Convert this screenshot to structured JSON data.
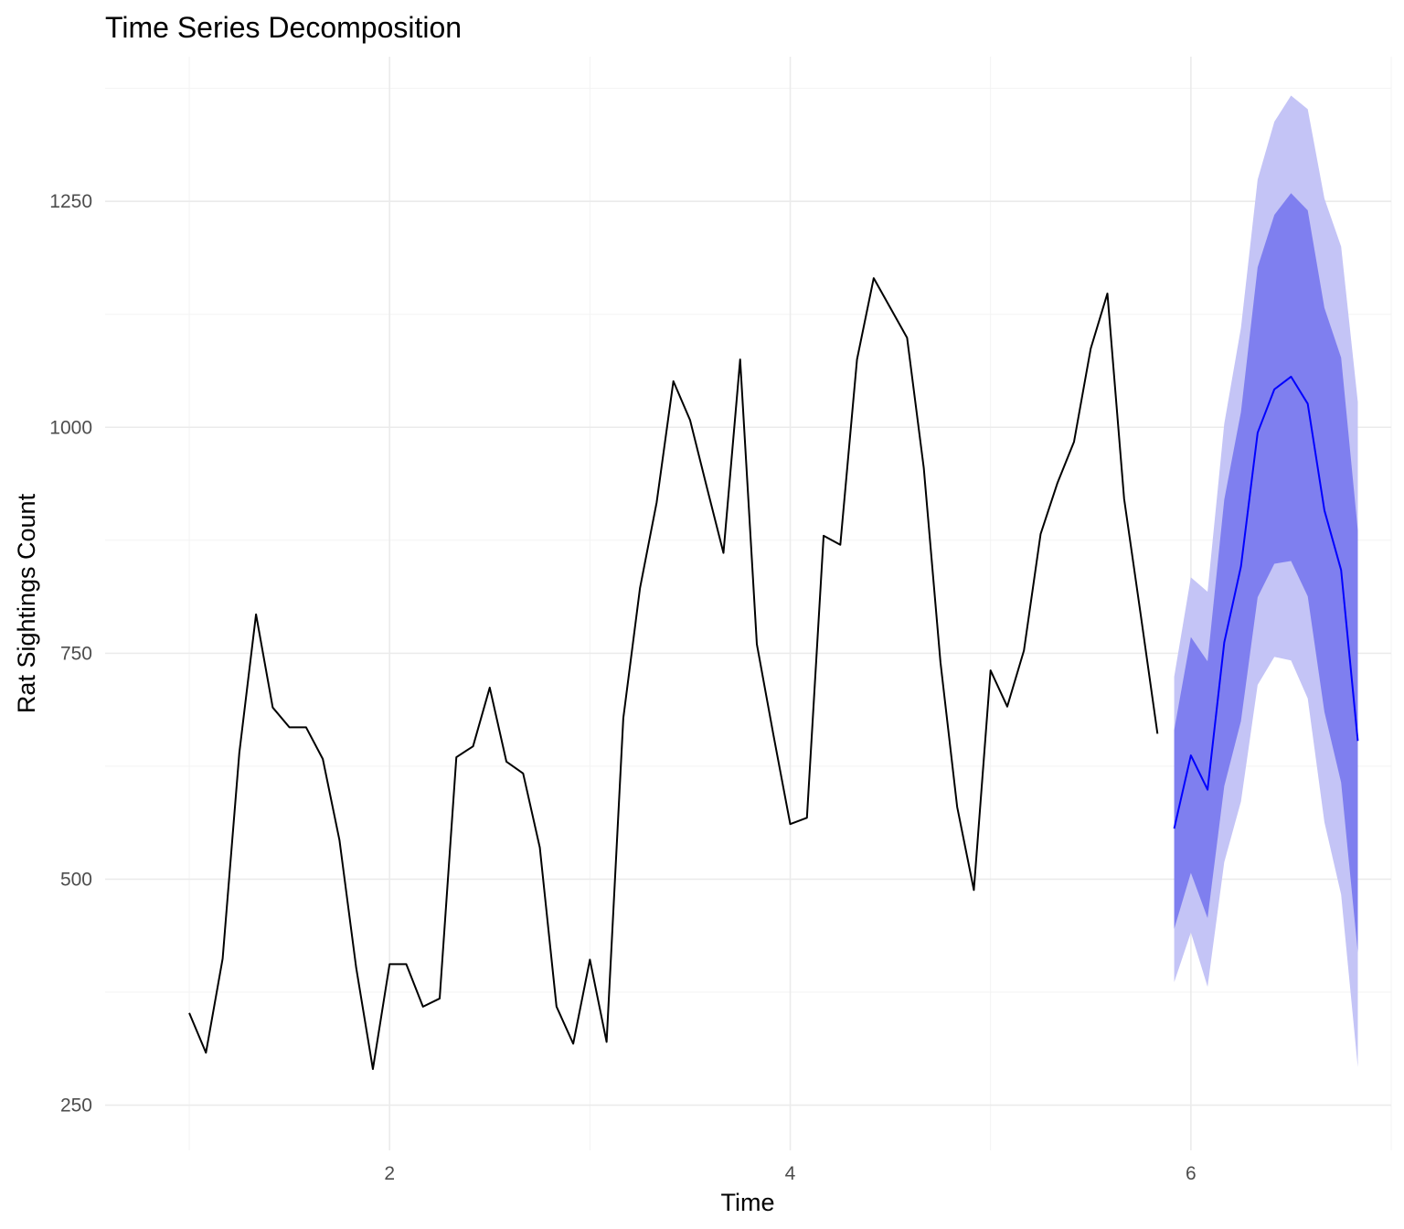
{
  "chart_data": {
    "type": "line",
    "title": "Time Series Decomposition",
    "xlabel": "Time",
    "ylabel": "Rat Sightings Count",
    "xlim": [
      0.58,
      7.0
    ],
    "ylim": [
      200,
      1410
    ],
    "x_ticks": [
      2,
      4,
      6
    ],
    "x_minor_ticks": [
      1,
      3,
      5,
      7
    ],
    "y_ticks": [
      250,
      500,
      750,
      1000,
      1250
    ],
    "y_minor_ticks": [
      375,
      625,
      875,
      1125,
      1375
    ],
    "grid": true,
    "legend": "none",
    "colors": {
      "observed": "#000000",
      "forecast_mean": "#0000ff",
      "band_80": "#7f7fef",
      "band_95": "#c4c4f6"
    },
    "series": [
      {
        "role": "observed",
        "x_start": 1.0,
        "x_step": 0.08333333,
        "values": [
          352,
          308,
          412,
          640,
          793,
          690,
          668,
          668,
          633,
          543,
          402,
          290,
          406,
          406,
          359,
          368,
          635,
          647,
          712,
          630,
          617,
          535,
          359,
          318,
          411,
          320,
          678,
          822,
          917,
          1051,
          1008,
          934,
          861,
          1075,
          760,
          659,
          561,
          568,
          880,
          870,
          1075,
          1165,
          1132,
          1099,
          955,
          740,
          580,
          488,
          731,
          691,
          753,
          882,
          938,
          984,
          1087,
          1148,
          921,
          792,
          661
        ]
      },
      {
        "role": "forecast_mean",
        "x_start": 5.91666667,
        "x_step": 0.08333333,
        "values": [
          556,
          637,
          599,
          762,
          846,
          994,
          1042,
          1056,
          1026,
          908,
          842,
          653
        ]
      },
      {
        "role": "band_80",
        "x_start": 5.91666667,
        "x_step": 0.08333333,
        "lower": [
          445,
          507,
          457,
          603,
          675,
          812,
          849,
          852,
          813,
          685,
          607,
          419
        ],
        "upper": [
          665,
          768,
          741,
          920,
          1017,
          1177,
          1235,
          1259,
          1240,
          1132,
          1077,
          886
        ]
      },
      {
        "role": "band_95",
        "x_start": 5.91666667,
        "x_step": 0.08333333,
        "lower": [
          386,
          441,
          381,
          519,
          586,
          715,
          746,
          742,
          700,
          563,
          483,
          292
        ],
        "upper": [
          724,
          834,
          818,
          1004,
          1110,
          1274,
          1338,
          1367,
          1352,
          1253,
          1200,
          1028
        ]
      }
    ]
  }
}
